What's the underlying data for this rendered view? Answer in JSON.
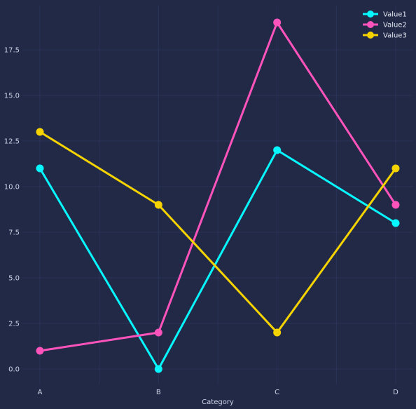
{
  "chart_data": {
    "type": "line",
    "title": "",
    "xlabel": "Category",
    "ylabel": "",
    "categories": [
      "A",
      "B",
      "C",
      "D"
    ],
    "ylim": [
      -0.95,
      19.95
    ],
    "yticks": [
      0.0,
      2.5,
      5.0,
      7.5,
      10.0,
      12.5,
      15.0,
      17.5
    ],
    "ytick_labels": [
      "0.0",
      "2.5",
      "5.0",
      "7.5",
      "10.0",
      "12.5",
      "15.0",
      "17.5"
    ],
    "grid": true,
    "legend": "top-right",
    "background": "#212946",
    "series": [
      {
        "name": "Value1",
        "color": "#08F7FE",
        "values": [
          11,
          0,
          12,
          8
        ]
      },
      {
        "name": "Value2",
        "color": "#FE53BB",
        "values": [
          1,
          2,
          19,
          9
        ]
      },
      {
        "name": "Value3",
        "color": "#F5D300",
        "values": [
          13,
          9,
          2,
          11
        ]
      }
    ]
  }
}
